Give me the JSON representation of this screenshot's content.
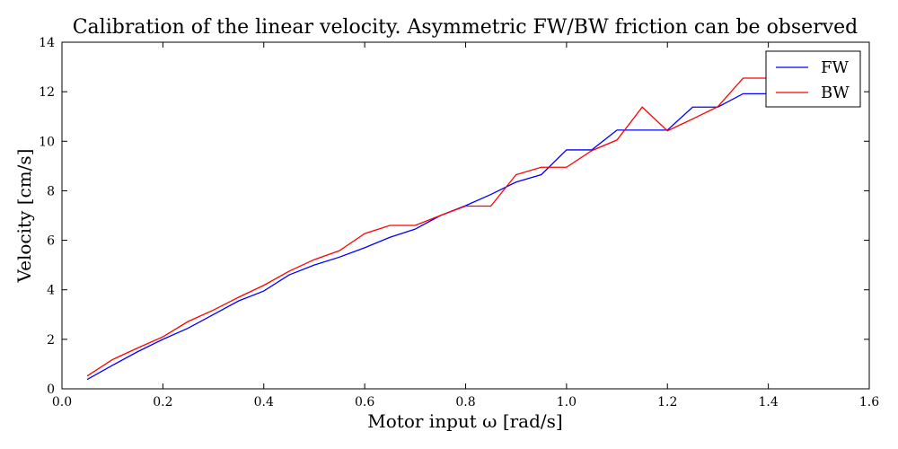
{
  "chart_data": {
    "type": "line",
    "title": "Calibration of the linear velocity. Asymmetric FW/BW friction can be observed",
    "xlabel": "Motor input ω [rad/s]",
    "ylabel": "Velocity [cm/s]",
    "xlim": [
      0.0,
      1.6
    ],
    "ylim": [
      0,
      14
    ],
    "xticks": [
      "0.0",
      "0.2",
      "0.4",
      "0.6",
      "0.8",
      "1.0",
      "1.2",
      "1.4",
      "1.6"
    ],
    "yticks": [
      "0",
      "2",
      "4",
      "6",
      "8",
      "10",
      "12",
      "14"
    ],
    "grid": false,
    "legend_position": "top-right",
    "x": [
      0.05,
      0.1,
      0.15,
      0.2,
      0.25,
      0.3,
      0.35,
      0.4,
      0.45,
      0.5,
      0.55,
      0.6,
      0.65,
      0.7,
      0.75,
      0.8,
      0.85,
      0.9,
      0.95,
      1.0,
      1.05,
      1.1,
      1.15,
      1.2,
      1.25,
      1.3,
      1.35,
      1.4
    ],
    "series": [
      {
        "name": "FW",
        "color": "#0000ff",
        "values": [
          0.38,
          0.95,
          1.5,
          2.0,
          2.45,
          3.0,
          3.55,
          3.95,
          4.6,
          5.0,
          5.32,
          5.7,
          6.12,
          6.45,
          7.0,
          7.4,
          7.85,
          8.35,
          8.65,
          9.65,
          9.65,
          10.45,
          10.45,
          10.45,
          11.38,
          11.38,
          11.92,
          11.92
        ]
      },
      {
        "name": "BW",
        "color": "#ff0000",
        "values": [
          0.52,
          1.18,
          1.65,
          2.1,
          2.72,
          3.18,
          3.7,
          4.18,
          4.75,
          5.22,
          5.58,
          6.27,
          6.6,
          6.6,
          7.0,
          7.38,
          7.38,
          8.65,
          8.95,
          8.95,
          9.62,
          10.05,
          11.38,
          10.42,
          10.9,
          11.4,
          12.55,
          12.55
        ]
      }
    ]
  }
}
